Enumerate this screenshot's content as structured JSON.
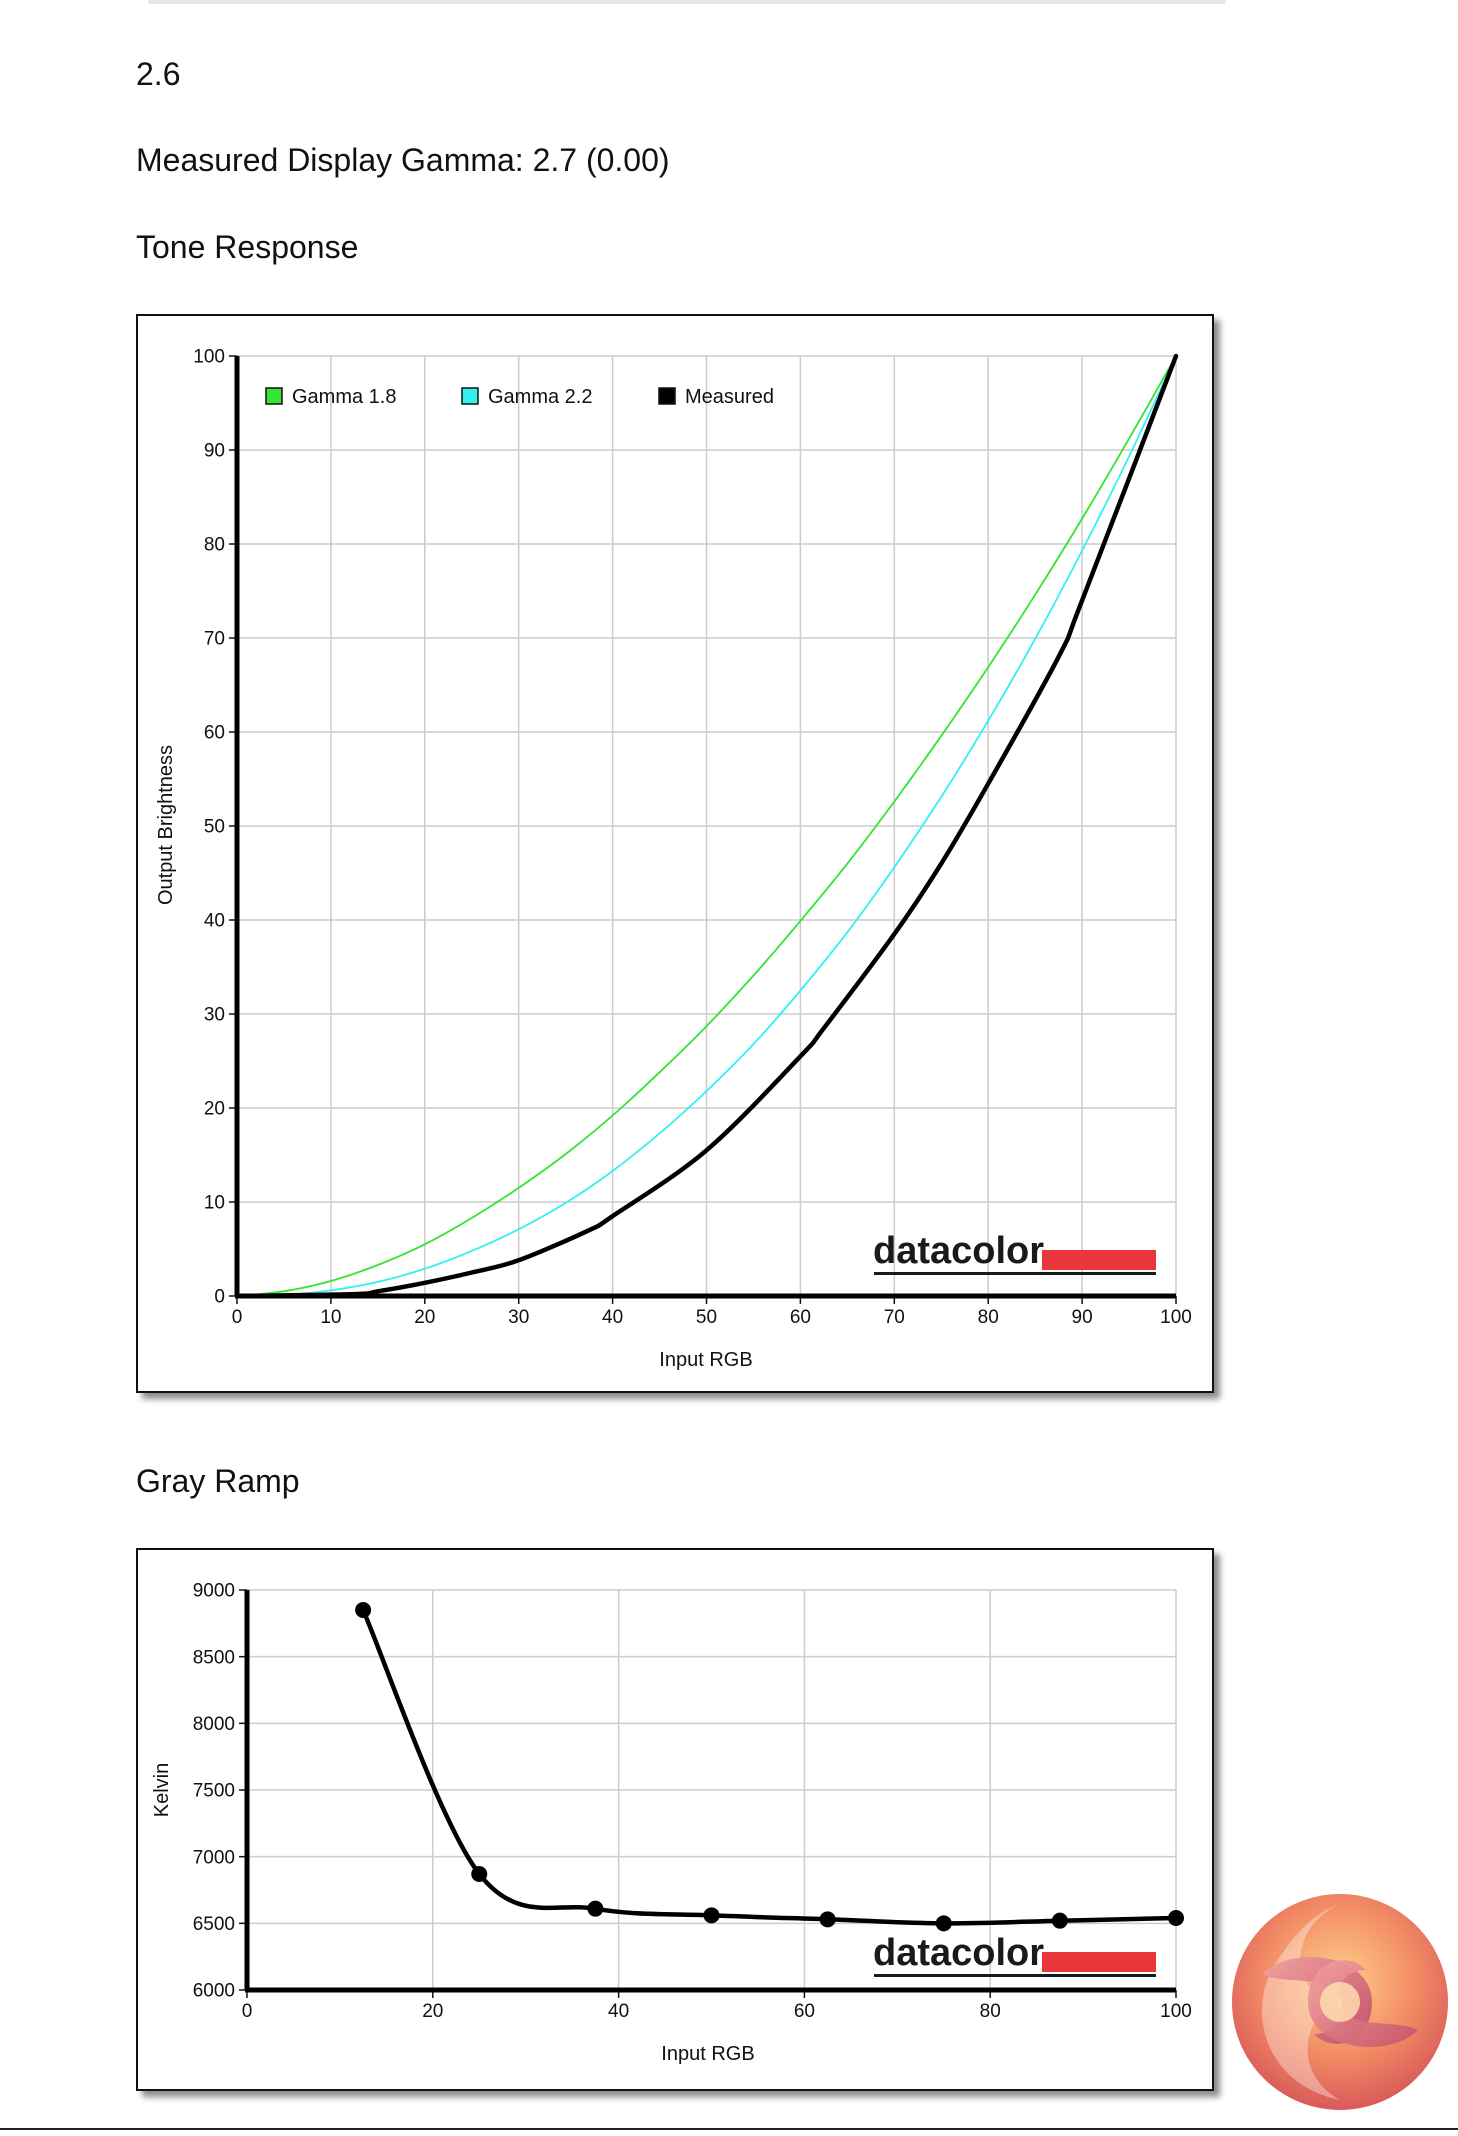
{
  "value_heading": "2.6",
  "measured_gamma_label": "Measured Display Gamma: 2.7 (0.00)",
  "tone_response_title": "Tone Response",
  "gray_ramp_title": "Gray Ramp",
  "brand_watermark": "datacolor",
  "colors": {
    "gamma18": "#33e433",
    "gamma22": "#33f0f0",
    "measured": "#000000",
    "brand_red": "#e8363a",
    "grid": "#cccccc"
  },
  "chart_data": [
    {
      "type": "line",
      "xlabel": "Input RGB",
      "ylabel": "Output Brightness",
      "xlim": [
        0,
        100
      ],
      "ylim": [
        0,
        100
      ],
      "x_ticks": [
        0,
        10,
        20,
        30,
        40,
        50,
        60,
        70,
        80,
        90,
        100
      ],
      "y_ticks": [
        0,
        10,
        20,
        30,
        40,
        50,
        60,
        70,
        80,
        90,
        100
      ],
      "grid": true,
      "legend_position": "top-left",
      "series": [
        {
          "name": "Gamma 1.8",
          "x": [
            0,
            5,
            10,
            15,
            20,
            25,
            30,
            35,
            40,
            45,
            50,
            55,
            60,
            65,
            70,
            75,
            80,
            85,
            90,
            95,
            100
          ],
          "y": [
            0,
            0.5,
            1.6,
            3.3,
            5.5,
            8.3,
            11.5,
            15.1,
            19.2,
            23.8,
            28.7,
            34.1,
            39.9,
            46.0,
            52.6,
            59.6,
            66.9,
            74.6,
            82.7,
            91.2,
            100
          ]
        },
        {
          "name": "Gamma 2.2",
          "x": [
            0,
            5,
            10,
            15,
            20,
            25,
            30,
            35,
            40,
            45,
            50,
            55,
            60,
            65,
            70,
            75,
            80,
            85,
            90,
            95,
            100
          ],
          "y": [
            0,
            0.1,
            0.6,
            1.5,
            2.9,
            4.8,
            7.1,
            9.9,
            13.3,
            17.3,
            21.8,
            26.8,
            32.5,
            38.7,
            45.6,
            53.1,
            61.2,
            69.9,
            79.3,
            89.3,
            100
          ]
        },
        {
          "name": "Measured",
          "x": [
            0,
            12.5,
            15,
            20,
            25,
            30,
            37.5,
            40,
            50,
            60,
            62.5,
            70,
            75,
            80,
            87.5,
            90,
            100
          ],
          "y": [
            0,
            0.2,
            0.5,
            1.4,
            2.5,
            3.8,
            7,
            8.5,
            15.5,
            25.5,
            28.5,
            38.5,
            46,
            54.5,
            68,
            74,
            100
          ]
        }
      ]
    },
    {
      "type": "line",
      "xlabel": "Input RGB",
      "ylabel": "Kelvin",
      "xlim": [
        0,
        100
      ],
      "ylim": [
        6000,
        9000
      ],
      "x_ticks": [
        0,
        20,
        40,
        60,
        80,
        100
      ],
      "y_ticks": [
        6000,
        6500,
        7000,
        7500,
        8000,
        8500,
        9000
      ],
      "grid": true,
      "series": [
        {
          "x": [
            12.5,
            25,
            37.5,
            50,
            62.5,
            75,
            87.5,
            100
          ],
          "y": [
            8850,
            6870,
            6610,
            6560,
            6530,
            6500,
            6520,
            6540
          ]
        }
      ]
    }
  ]
}
